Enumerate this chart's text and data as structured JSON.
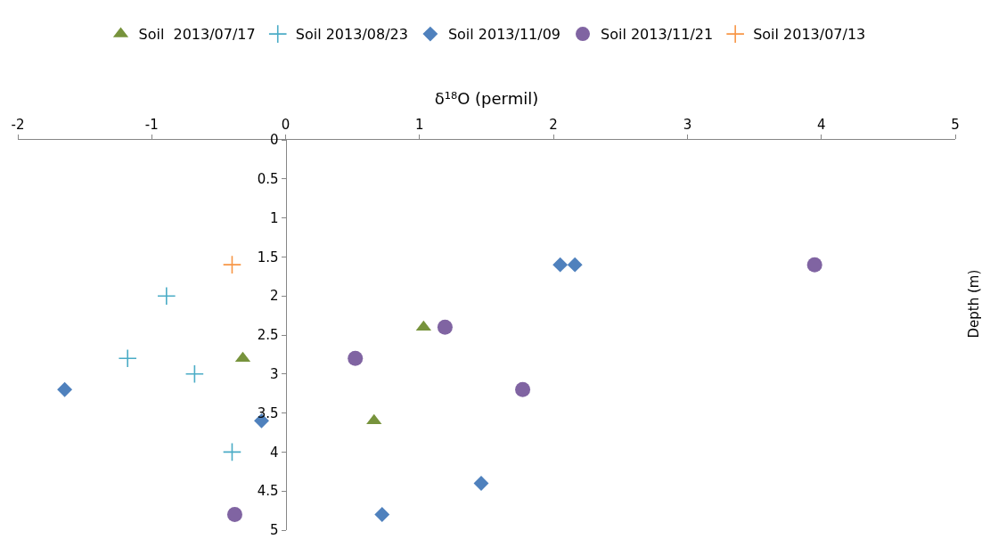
{
  "chart_data": {
    "type": "scatter",
    "xlabel": "δ¹⁸O (permil)",
    "ylabel": "Depth (m)",
    "xlim": [
      -2,
      5
    ],
    "xticks": [
      -2,
      -1,
      0,
      1,
      2,
      3,
      4,
      5
    ],
    "ylim": [
      5,
      0
    ],
    "yticks": [
      0,
      0.5,
      1,
      1.5,
      2,
      2.5,
      3,
      3.5,
      4,
      4.5,
      5
    ],
    "grid": false,
    "legend": "top",
    "series": [
      {
        "name": "Soil  2013/07/17",
        "color": "#77933c",
        "marker": "triangle",
        "x": [
          1.03,
          -0.32,
          0.66
        ],
        "values": [
          2.4,
          2.8,
          3.6
        ]
      },
      {
        "name": "Soil 2013/08/23",
        "color": "#4bacc6",
        "marker": "cross",
        "x": [
          -0.89,
          -1.18,
          -0.68,
          -0.4
        ],
        "values": [
          2.0,
          2.8,
          3.0,
          4.0
        ]
      },
      {
        "name": "Soil 2013/11/09",
        "color": "#4f81bd",
        "marker": "diamond",
        "x": [
          2.05,
          2.16,
          -1.65,
          -0.18,
          1.46,
          0.72
        ],
        "values": [
          1.6,
          1.6,
          3.2,
          3.6,
          4.4,
          4.8
        ]
      },
      {
        "name": "Soil 2013/11/21",
        "color": "#8064a2",
        "marker": "circle",
        "x": [
          3.95,
          1.19,
          0.52,
          1.77,
          -0.38
        ],
        "values": [
          1.6,
          2.4,
          2.8,
          3.2,
          4.8
        ]
      },
      {
        "name": "Soil 2013/07/13",
        "color": "#f79646",
        "marker": "cross",
        "x": [
          -0.4
        ],
        "values": [
          1.6
        ]
      }
    ]
  }
}
